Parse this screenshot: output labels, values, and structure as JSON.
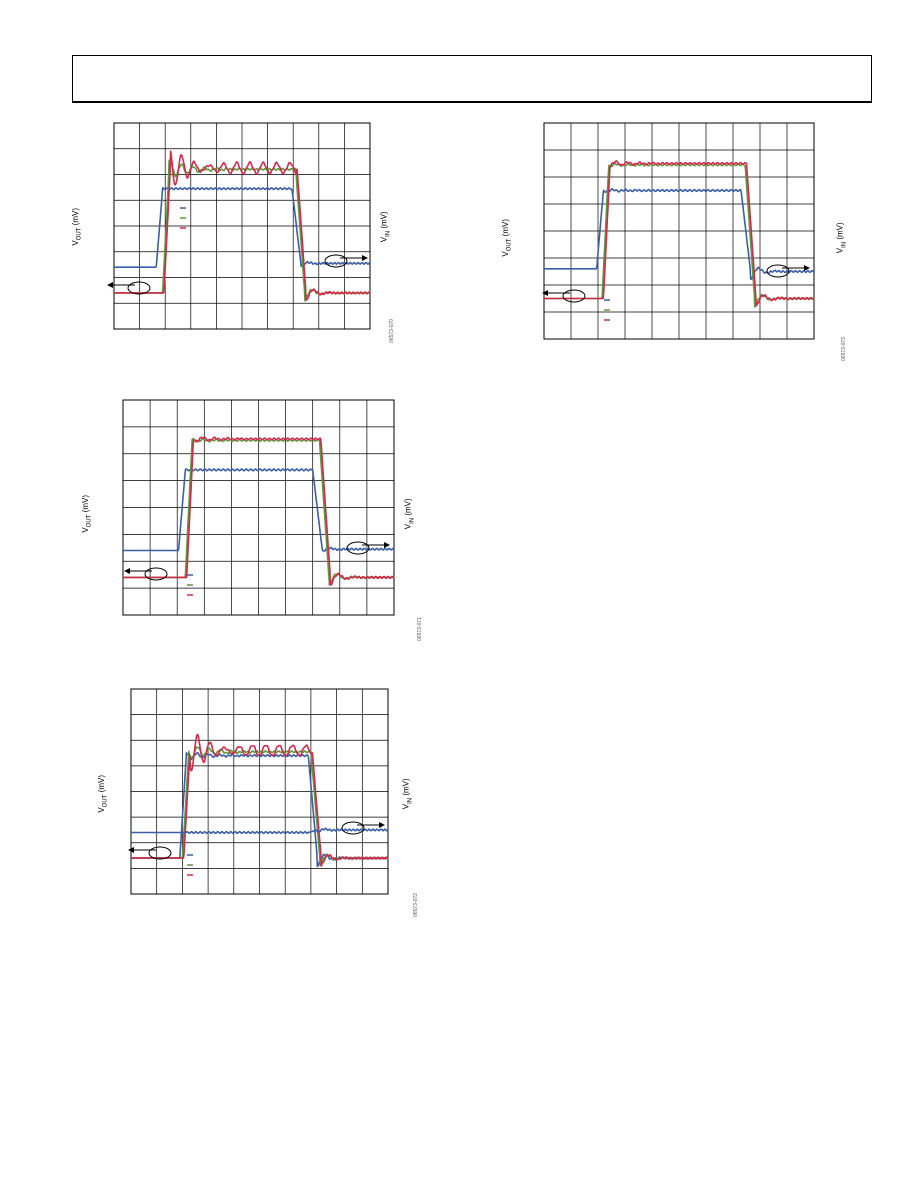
{
  "page": {
    "header": ""
  },
  "colors": {
    "blue": "#3a5fa8",
    "green": "#5a9a3a",
    "red": "#d22a4a",
    "grid": "#000000"
  },
  "chart_data": [
    {
      "id": "plot1",
      "type": "line",
      "ylabel_left_main": "V",
      "ylabel_left_sub": "OUT",
      "ylabel_left_unit": " (mV)",
      "ylabel_right_main": "V",
      "ylabel_right_sub": "IN",
      "ylabel_right_unit": " (mV)",
      "figure_id": "06573-070",
      "grid": true,
      "xlim": [
        0,
        10
      ],
      "ylim": [
        0,
        8
      ],
      "legend_placement": "center-left",
      "series": [
        {
          "color_key": "blue",
          "rise": 1.65,
          "fall": 6.95,
          "low": 2.4,
          "high": 5.45,
          "low_after": 2.55,
          "ringing": 0.0
        },
        {
          "color_key": "green",
          "rise": 1.9,
          "fall": 7.1,
          "low": 1.4,
          "high": 6.2,
          "low_after": 1.4,
          "ringing": 0.35
        },
        {
          "color_key": "red",
          "rise": 1.95,
          "fall": 7.15,
          "low": 1.4,
          "high": 6.25,
          "low_after": 1.4,
          "ringing": 0.6
        }
      ]
    },
    {
      "id": "plot2",
      "type": "line",
      "ylabel_left_main": "V",
      "ylabel_left_sub": "OUT",
      "ylabel_left_unit": " (mV)",
      "ylabel_right_main": "V",
      "ylabel_right_sub": "IN",
      "ylabel_right_unit": " (mV)",
      "figure_id": "06573-071",
      "grid": true,
      "xlim": [
        0,
        10
      ],
      "ylim": [
        0,
        8
      ],
      "legend_placement": "bottom-left",
      "series": [
        {
          "color_key": "blue",
          "rise": 2.05,
          "fall": 7.0,
          "low": 2.4,
          "high": 5.4,
          "low_after": 2.45,
          "ringing": 0.0
        },
        {
          "color_key": "green",
          "rise": 2.3,
          "fall": 7.25,
          "low": 1.4,
          "high": 6.5,
          "low_after": 1.4,
          "ringing": 0.05
        },
        {
          "color_key": "red",
          "rise": 2.35,
          "fall": 7.3,
          "low": 1.4,
          "high": 6.55,
          "low_after": 1.4,
          "ringing": 0.1
        }
      ]
    },
    {
      "id": "plot3",
      "type": "line",
      "ylabel_left_main": "V",
      "ylabel_left_sub": "OUT",
      "ylabel_left_unit": " (mV)",
      "ylabel_right_main": "V",
      "ylabel_right_sub": "IN",
      "ylabel_right_unit": " (mV)",
      "figure_id": "06573-072",
      "grid": true,
      "xlim": [
        0,
        10
      ],
      "ylim": [
        0,
        8
      ],
      "legend_placement": "bottom-left",
      "series": [
        {
          "color_key": "blue",
          "rise": 1.9,
          "fall": 6.9,
          "low": 1.4,
          "high": 5.4,
          "low_after": 1.4,
          "ringing": 0.15
        },
        {
          "color_key": "green",
          "rise": 2.0,
          "fall": 7.0,
          "low": 1.4,
          "high": 5.55,
          "low_after": 1.4,
          "ringing": 0.3
        },
        {
          "color_key": "red",
          "rise": 2.05,
          "fall": 7.05,
          "low": 1.4,
          "high": 5.6,
          "low_after": 1.4,
          "ringing": 0.6
        },
        {
          "color_key": "blue",
          "rise": 1.9,
          "fall": 6.9,
          "low": 2.4,
          "high": 2.4,
          "low_after": 2.5,
          "ringing": 0.0
        }
      ]
    },
    {
      "id": "plot4",
      "type": "line",
      "ylabel_left_main": "V",
      "ylabel_left_sub": "OUT",
      "ylabel_left_unit": " (mV)",
      "ylabel_right_main": "V",
      "ylabel_right_sub": "IN",
      "ylabel_right_unit": " (mV)",
      "figure_id": "06573-073",
      "grid": true,
      "xlim": [
        0,
        10
      ],
      "ylim": [
        0,
        8
      ],
      "legend_placement": "bottom-left",
      "series": [
        {
          "color_key": "blue",
          "rise": 1.95,
          "fall": 7.3,
          "low": 2.6,
          "high": 5.5,
          "low_after": 2.5,
          "ringing": 0.05
        },
        {
          "color_key": "green",
          "rise": 2.15,
          "fall": 7.45,
          "low": 1.5,
          "high": 6.45,
          "low_after": 1.5,
          "ringing": 0.05
        },
        {
          "color_key": "red",
          "rise": 2.2,
          "fall": 7.5,
          "low": 1.5,
          "high": 6.5,
          "low_after": 1.5,
          "ringing": 0.1
        }
      ]
    }
  ]
}
